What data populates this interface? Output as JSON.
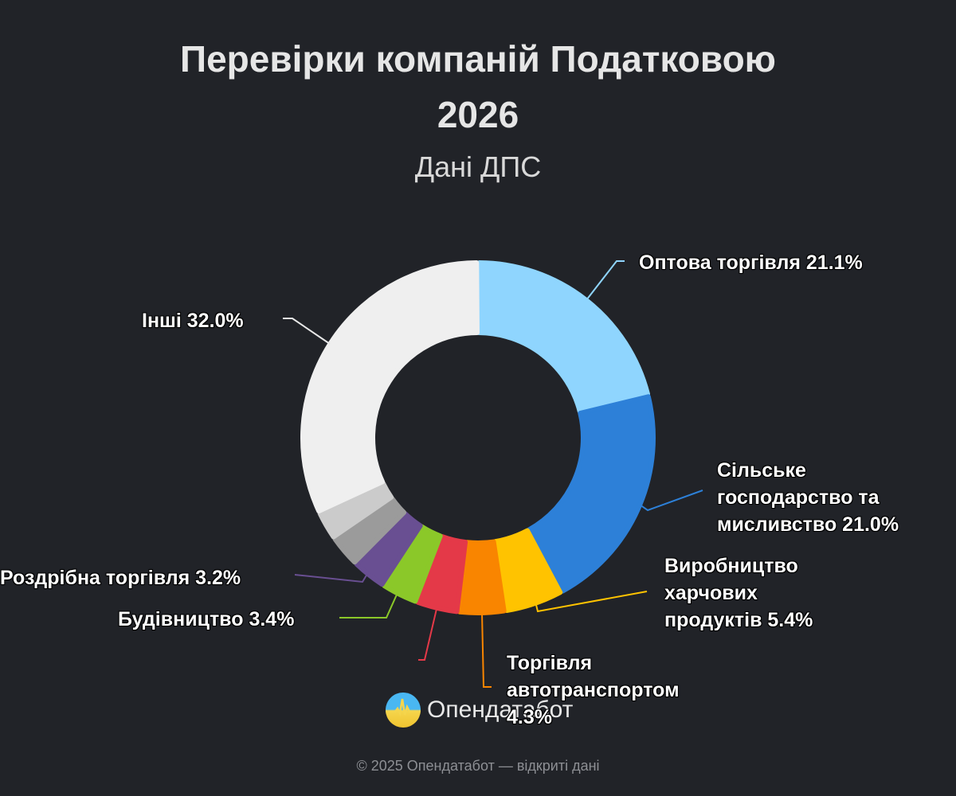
{
  "header": {
    "title_line1": "Перевірки компаній Податковою",
    "title_line2": "2026",
    "subtitle": "Дані ДПС"
  },
  "labels": {
    "wholesale": "Оптова торгівля 21.1%",
    "agri_1": "Сільське",
    "agri_2": "господарство та",
    "agri_3": "мисливство 21.0%",
    "food_1": "Виробництво",
    "food_2": "харчових",
    "food_3": "продуктів 5.4%",
    "auto_1": "Торгівля",
    "auto_2": "автотранспортом",
    "auto_3": "4.3%",
    "construction": "Будівництво 3.4%",
    "retail": "Роздрібна торгівля 3.2%",
    "other": "Інші 32.0%"
  },
  "logo": {
    "text": "Опендатабот",
    "icon": "opendatabot-logo-icon"
  },
  "footer": {
    "text": "© 2025 Опендатабот — відкриті дані"
  },
  "chart_data": {
    "type": "pie",
    "variant": "donut",
    "title": "Перевірки компаній Податковою 2026",
    "subtitle": "Дані ДПС",
    "center": [
      600,
      550
    ],
    "outer_radius": 220,
    "inner_radius": 132,
    "start_angle_deg": 0,
    "direction": "clockwise",
    "legend": "none (labels with leader lines)",
    "slices": [
      {
        "label": "Оптова торгівля",
        "value": 21.1,
        "color": "#8fd5fe",
        "labeled": true
      },
      {
        "label": "Сільське господарство та мисливство",
        "value": 21.0,
        "color": "#2d80d8",
        "labeled": true
      },
      {
        "label": "Виробництво харчових продуктів",
        "value": 5.4,
        "color": "#ffc300",
        "labeled": true
      },
      {
        "label": "Торгівля автотранспортом",
        "value": 4.3,
        "color": "#f98500",
        "labeled": true
      },
      {
        "label": "",
        "value": 3.9,
        "color": "#e43948",
        "labeled": false
      },
      {
        "label": "Будівництво",
        "value": 3.4,
        "color": "#8bc829",
        "labeled": true
      },
      {
        "label": "Роздрібна торгівля",
        "value": 3.2,
        "color": "#694f92",
        "labeled": true
      },
      {
        "label": "",
        "value": 3.0,
        "color": "#9b9b9b",
        "labeled": false
      },
      {
        "label": "",
        "value": 2.7,
        "color": "#cbcbcb",
        "labeled": false
      },
      {
        "label": "Інші",
        "value": 32.0,
        "color": "#efefef",
        "labeled": true
      }
    ]
  }
}
